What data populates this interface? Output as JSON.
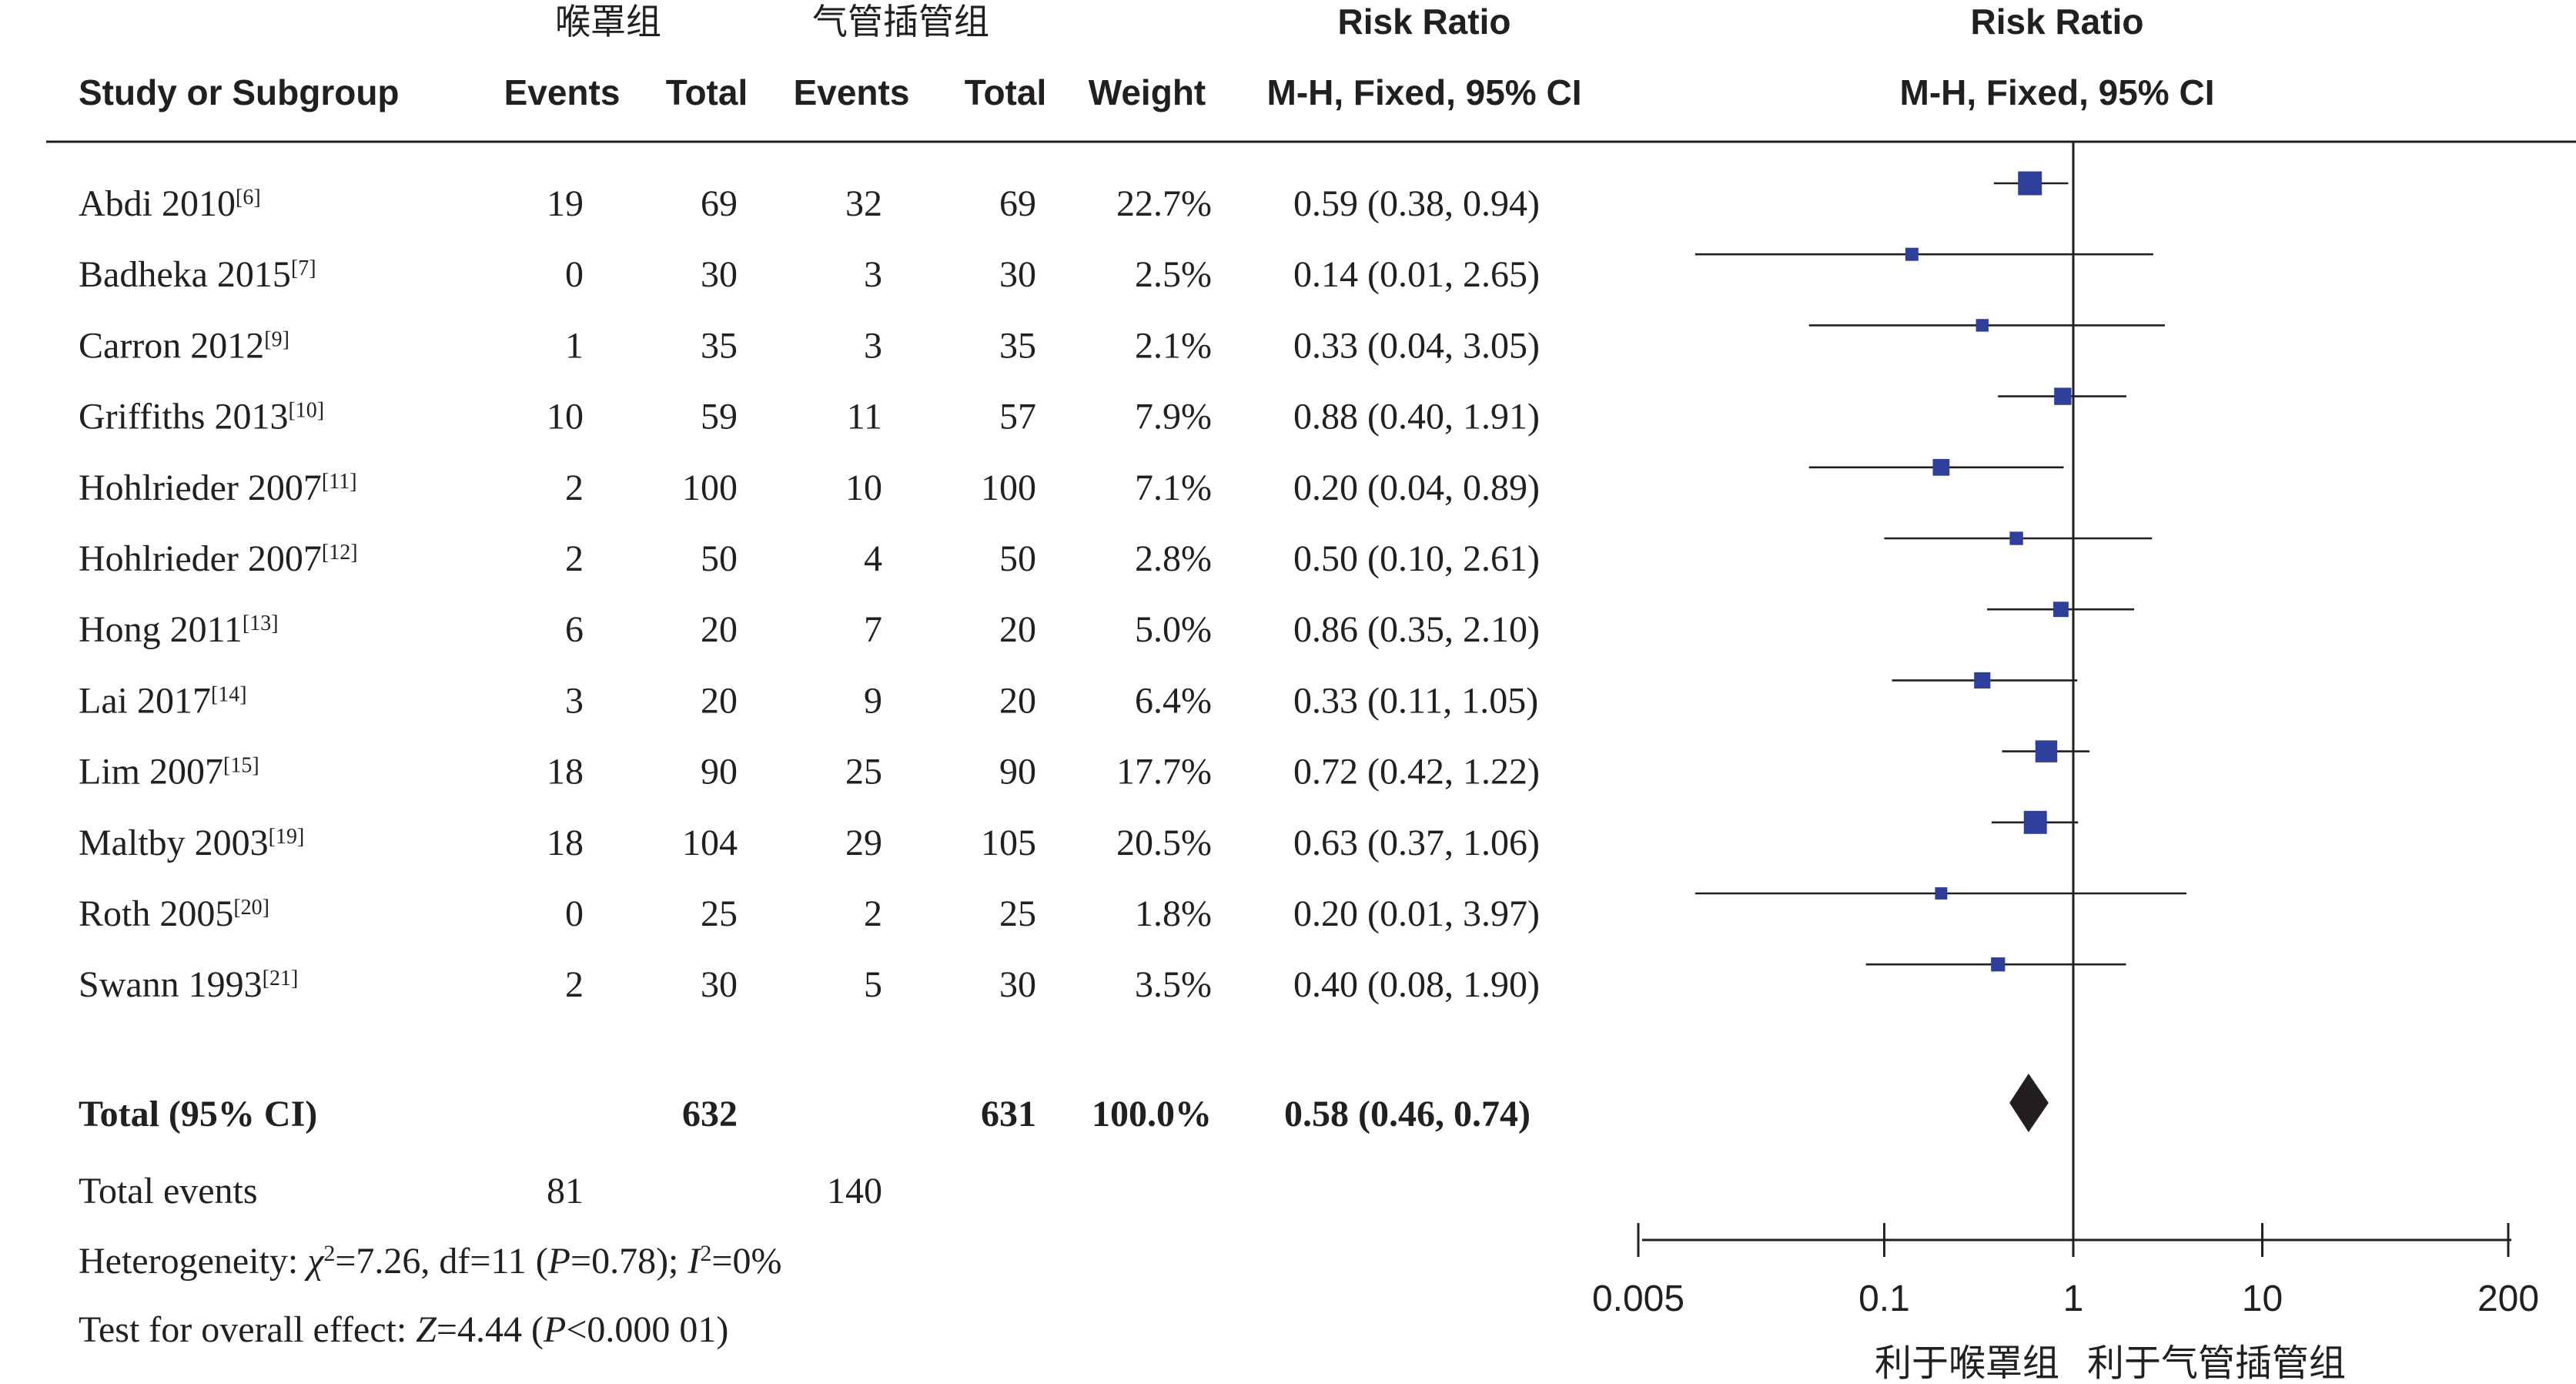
{
  "table": {
    "headers": {
      "group_laryngeal": "喉罩组",
      "group_tracheal": "气管插管组",
      "risk_ratio_title": "Risk Ratio",
      "study_or_subgroup": "Study or Subgroup",
      "events": "Events",
      "total": "Total",
      "weight": "Weight",
      "method": "M-H, Fixed, 95% CI",
      "plot_title": "Risk Ratio",
      "plot_method": "M-H, Fixed, 95% CI"
    },
    "studies": [
      {
        "name": "Abdi 2010",
        "ref": "[6]",
        "e1": "19",
        "t1": "69",
        "e2": "32",
        "t2": "69",
        "weight": "22.7%",
        "ci": "0.59 (0.38, 0.94)"
      },
      {
        "name": "Badheka 2015",
        "ref": "[7]",
        "e1": "0",
        "t1": "30",
        "e2": "3",
        "t2": "30",
        "weight": "2.5%",
        "ci": "0.14 (0.01, 2.65)"
      },
      {
        "name": "Carron 2012",
        "ref": "[9]",
        "e1": "1",
        "t1": "35",
        "e2": "3",
        "t2": "35",
        "weight": "2.1%",
        "ci": "0.33 (0.04, 3.05)"
      },
      {
        "name": "Griffiths 2013",
        "ref": "[10]",
        "e1": "10",
        "t1": "59",
        "e2": "11",
        "t2": "57",
        "weight": "7.9%",
        "ci": "0.88 (0.40, 1.91)"
      },
      {
        "name": "Hohlrieder 2007",
        "ref": "[11]",
        "e1": "2",
        "t1": "100",
        "e2": "10",
        "t2": "100",
        "weight": "7.1%",
        "ci": "0.20 (0.04, 0.89)"
      },
      {
        "name": "Hohlrieder 2007",
        "ref": "[12]",
        "e1": "2",
        "t1": "50",
        "e2": "4",
        "t2": "50",
        "weight": "2.8%",
        "ci": "0.50 (0.10, 2.61)"
      },
      {
        "name": "Hong 2011",
        "ref": "[13]",
        "e1": "6",
        "t1": "20",
        "e2": "7",
        "t2": "20",
        "weight": "5.0%",
        "ci": "0.86 (0.35, 2.10)"
      },
      {
        "name": "Lai 2017",
        "ref": "[14]",
        "e1": "3",
        "t1": "20",
        "e2": "9",
        "t2": "20",
        "weight": "6.4%",
        "ci": "0.33 (0.11, 1.05)"
      },
      {
        "name": "Lim 2007",
        "ref": "[15]",
        "e1": "18",
        "t1": "90",
        "e2": "25",
        "t2": "90",
        "weight": "17.7%",
        "ci": "0.72 (0.42, 1.22)"
      },
      {
        "name": "Maltby 2003",
        "ref": "[19]",
        "e1": "18",
        "t1": "104",
        "e2": "29",
        "t2": "105",
        "weight": "20.5%",
        "ci": "0.63 (0.37, 1.06)"
      },
      {
        "name": "Roth 2005",
        "ref": "[20]",
        "e1": "0",
        "t1": "25",
        "e2": "2",
        "t2": "25",
        "weight": "1.8%",
        "ci": "0.20 (0.01, 3.97)"
      },
      {
        "name": "Swann 1993",
        "ref": "[21]",
        "e1": "2",
        "t1": "30",
        "e2": "5",
        "t2": "30",
        "weight": "3.5%",
        "ci": "0.40 (0.08, 1.90)"
      }
    ],
    "total": {
      "label": "Total (95% CI)",
      "t1": "632",
      "t2": "631",
      "weight": "100.0%",
      "ci": "0.58 (0.46, 0.74)"
    },
    "total_events": {
      "label": "Total events",
      "e1": "81",
      "e2": "140"
    },
    "heterogeneity": {
      "prefix": "Heterogeneity: ",
      "chi": "χ",
      "chi_sup": "2",
      "chi_rest": "=7.26, df=11 (",
      "p": "P",
      "p_rest": "=0.78); ",
      "i": "I",
      "i_sup": "2",
      "i_rest": "=0%"
    },
    "overall_effect": {
      "prefix": "Test for overall effect: ",
      "z": "Z",
      "z_rest": "=4.44 (",
      "p": "P",
      "p_rest": "<0.000 01)"
    }
  },
  "chart_data": {
    "type": "forest",
    "measure": "Risk Ratio",
    "method": "M-H, Fixed, 95% CI",
    "x_scale": "log",
    "xlim": [
      0.005,
      200
    ],
    "x_ticks": [
      0.005,
      0.1,
      1,
      10,
      200
    ],
    "x_tick_labels": [
      "0.005",
      "0.1",
      "1",
      "10",
      "200"
    ],
    "null_line": 1,
    "favours_left": "利于喉罩组",
    "favours_right": "利于气管插管组",
    "studies": [
      {
        "rr": 0.59,
        "lo": 0.38,
        "hi": 0.94,
        "weight": 22.7
      },
      {
        "rr": 0.14,
        "lo": 0.01,
        "hi": 2.65,
        "weight": 2.5
      },
      {
        "rr": 0.33,
        "lo": 0.04,
        "hi": 3.05,
        "weight": 2.1
      },
      {
        "rr": 0.88,
        "lo": 0.4,
        "hi": 1.91,
        "weight": 7.9
      },
      {
        "rr": 0.2,
        "lo": 0.04,
        "hi": 0.89,
        "weight": 7.1
      },
      {
        "rr": 0.5,
        "lo": 0.1,
        "hi": 2.61,
        "weight": 2.8
      },
      {
        "rr": 0.86,
        "lo": 0.35,
        "hi": 2.1,
        "weight": 5.0
      },
      {
        "rr": 0.33,
        "lo": 0.11,
        "hi": 1.05,
        "weight": 6.4
      },
      {
        "rr": 0.72,
        "lo": 0.42,
        "hi": 1.22,
        "weight": 17.7
      },
      {
        "rr": 0.63,
        "lo": 0.37,
        "hi": 1.06,
        "weight": 20.5
      },
      {
        "rr": 0.2,
        "lo": 0.01,
        "hi": 3.97,
        "weight": 1.8
      },
      {
        "rr": 0.4,
        "lo": 0.08,
        "hi": 1.9,
        "weight": 3.5
      }
    ],
    "pooled": {
      "rr": 0.58,
      "lo": 0.46,
      "hi": 0.74
    },
    "colors": {
      "marker": "#2d3e9b",
      "diamond": "#231f20",
      "line": "#231f20"
    }
  }
}
